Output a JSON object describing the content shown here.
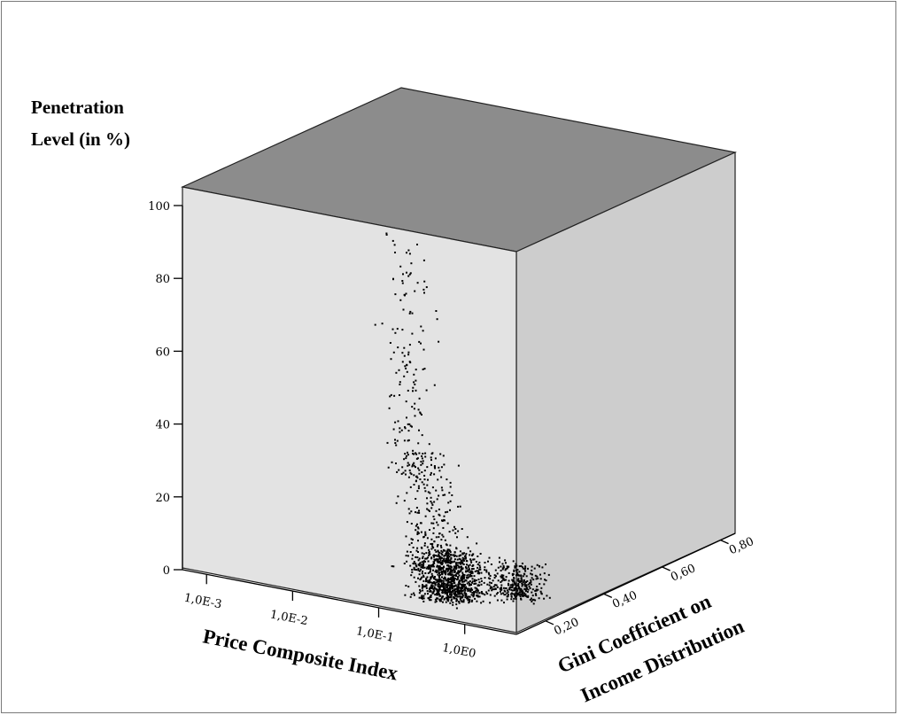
{
  "chart_data": {
    "type": "scatter",
    "projection": "3d",
    "title": "",
    "y_axis": {
      "label_lines": [
        "Penetration",
        "Level (in %)"
      ],
      "ticks": [
        0,
        20,
        40,
        60,
        80,
        100
      ],
      "range": [
        0,
        105
      ]
    },
    "x_axis": {
      "label": "Price Composite Index",
      "scale": "log",
      "ticks": [
        0.001,
        0.01,
        0.1,
        1.0
      ],
      "tick_labels": [
        "1,0E-3",
        "1,0E-2",
        "1,0E-1",
        "1,0E0"
      ]
    },
    "z_axis": {
      "label_lines": [
        "Gini Coefficient on",
        "Income Distribution"
      ],
      "ticks": [
        0.2,
        0.4,
        0.6,
        0.8
      ],
      "tick_labels": [
        "0,20",
        "0,40",
        "0,60",
        "0,80"
      ]
    },
    "grid": false,
    "legend": "none",
    "colors": {
      "front_panel": "#e3e3e3",
      "top_panel": "#8c8c8c",
      "side_panel": "#cdcdcd",
      "points": "#000000"
    },
    "series": [
      {
        "points_description_unused": "",
        "clusters": [
          {
            "x_log_center": -0.6,
            "x_log_spread": 0.35,
            "y_min": 0,
            "y_max": 12,
            "z_center": 0.45,
            "z_spread": 0.15,
            "count": 900
          },
          {
            "x_log_center": -0.7,
            "x_log_spread": 0.3,
            "y_min": 8,
            "y_max": 40,
            "z_center": 0.35,
            "z_spread": 0.12,
            "count": 260
          },
          {
            "x_log_center": -0.9,
            "x_log_spread": 0.25,
            "y_min": 35,
            "y_max": 100,
            "z_center": 0.3,
            "z_spread": 0.1,
            "count": 170
          },
          {
            "x_log_center": -0.1,
            "x_log_spread": 0.3,
            "y_min": 0,
            "y_max": 8,
            "z_center": 0.65,
            "z_spread": 0.12,
            "count": 320
          }
        ]
      }
    ]
  }
}
